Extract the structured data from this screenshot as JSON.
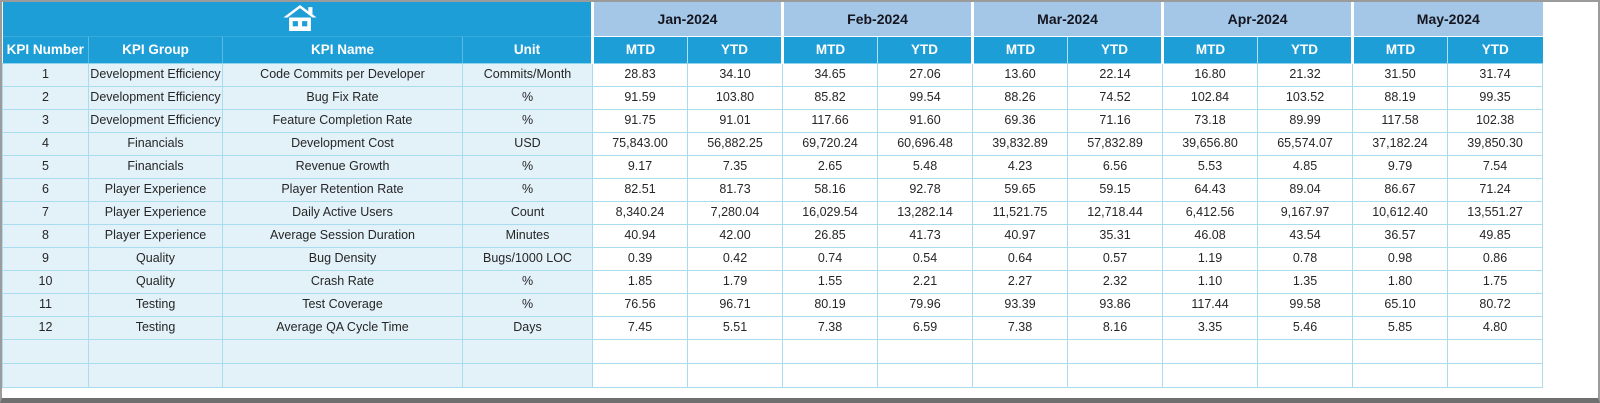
{
  "colors": {
    "header_cyan": "#1e9ed6",
    "month_band_blue": "#a4c7e8",
    "row_tint_blue": "#e3f1f9",
    "grid_line_cyan": "#a9dcee",
    "header_text": "#ffffff",
    "month_text": "#15151f",
    "body_text": "#262626",
    "window_border": "#9b9b9b"
  },
  "toolbar": {
    "home_icon": "home-icon"
  },
  "table": {
    "info_headers": [
      "KPI Number",
      "KPI Group",
      "KPI Name",
      "Unit"
    ],
    "months": [
      "Jan-2024",
      "Feb-2024",
      "Mar-2024",
      "Apr-2024",
      "May-2024"
    ],
    "sub_headers": [
      "MTD",
      "YTD"
    ],
    "empty_row_count": 2,
    "rows": [
      {
        "number": "1",
        "group": "Development Efficiency",
        "name": "Code Commits per Developer",
        "unit": "Commits/Month",
        "values": [
          "28.83",
          "34.10",
          "34.65",
          "27.06",
          "13.60",
          "22.14",
          "16.80",
          "21.32",
          "31.50",
          "31.74"
        ]
      },
      {
        "number": "2",
        "group": "Development Efficiency",
        "name": "Bug Fix Rate",
        "unit": "%",
        "values": [
          "91.59",
          "103.80",
          "85.82",
          "99.54",
          "88.26",
          "74.52",
          "102.84",
          "103.52",
          "88.19",
          "99.35"
        ]
      },
      {
        "number": "3",
        "group": "Development Efficiency",
        "name": "Feature Completion Rate",
        "unit": "%",
        "values": [
          "91.75",
          "91.01",
          "117.66",
          "91.60",
          "69.36",
          "71.16",
          "73.18",
          "89.99",
          "117.58",
          "102.38"
        ]
      },
      {
        "number": "4",
        "group": "Financials",
        "name": "Development Cost",
        "unit": "USD",
        "values": [
          "75,843.00",
          "56,882.25",
          "69,720.24",
          "60,696.48",
          "39,832.89",
          "57,832.89",
          "39,656.80",
          "65,574.07",
          "37,182.24",
          "39,850.30"
        ]
      },
      {
        "number": "5",
        "group": "Financials",
        "name": "Revenue Growth",
        "unit": "%",
        "values": [
          "9.17",
          "7.35",
          "2.65",
          "5.48",
          "4.23",
          "6.56",
          "5.53",
          "4.85",
          "9.79",
          "7.54"
        ]
      },
      {
        "number": "6",
        "group": "Player Experience",
        "name": "Player Retention Rate",
        "unit": "%",
        "values": [
          "82.51",
          "81.73",
          "58.16",
          "92.78",
          "59.65",
          "59.15",
          "64.43",
          "89.04",
          "86.67",
          "71.24"
        ]
      },
      {
        "number": "7",
        "group": "Player Experience",
        "name": "Daily Active Users",
        "unit": "Count",
        "values": [
          "8,340.24",
          "7,280.04",
          "16,029.54",
          "13,282.14",
          "11,521.75",
          "12,718.44",
          "6,412.56",
          "9,167.97",
          "10,612.40",
          "13,551.27"
        ]
      },
      {
        "number": "8",
        "group": "Player Experience",
        "name": "Average Session Duration",
        "unit": "Minutes",
        "values": [
          "40.94",
          "42.00",
          "26.85",
          "41.73",
          "40.97",
          "35.31",
          "46.08",
          "43.54",
          "36.57",
          "49.85"
        ]
      },
      {
        "number": "9",
        "group": "Quality",
        "name": "Bug Density",
        "unit": "Bugs/1000 LOC",
        "values": [
          "0.39",
          "0.42",
          "0.74",
          "0.54",
          "0.64",
          "0.57",
          "1.19",
          "0.78",
          "0.98",
          "0.86"
        ]
      },
      {
        "number": "10",
        "group": "Quality",
        "name": "Crash Rate",
        "unit": "%",
        "values": [
          "1.85",
          "1.79",
          "1.55",
          "2.21",
          "2.27",
          "2.32",
          "1.10",
          "1.35",
          "1.80",
          "1.75"
        ]
      },
      {
        "number": "11",
        "group": "Testing",
        "name": "Test Coverage",
        "unit": "%",
        "values": [
          "76.56",
          "96.71",
          "80.19",
          "79.96",
          "93.39",
          "93.86",
          "117.44",
          "99.58",
          "65.10",
          "80.72"
        ]
      },
      {
        "number": "12",
        "group": "Testing",
        "name": "Average QA Cycle Time",
        "unit": "Days",
        "values": [
          "7.45",
          "5.51",
          "7.38",
          "6.59",
          "7.38",
          "8.16",
          "3.35",
          "5.46",
          "5.85",
          "4.80"
        ]
      }
    ]
  }
}
